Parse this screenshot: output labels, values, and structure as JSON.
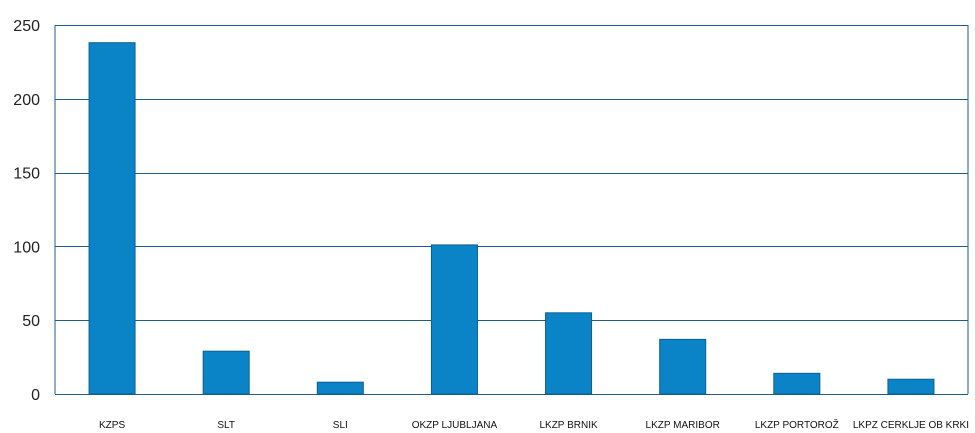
{
  "chart_data": {
    "type": "bar",
    "categories": [
      "KZPS",
      "SLT",
      "SLI",
      "OKZP LJUBLJANA",
      "LKZP BRNIK",
      "LKZP MARIBOR",
      "LKZP PORTOROŽ",
      "LKPZ CERKLJE OB KRKI"
    ],
    "values": [
      238,
      29,
      8,
      101,
      55,
      37,
      14,
      10
    ],
    "ylim": [
      0,
      250
    ],
    "yticks": [
      0,
      50,
      100,
      150,
      200,
      250
    ],
    "grid": true,
    "colors": {
      "bar": "#0a84c6",
      "bar_edge": "#0a5f95",
      "grid": "#1f5a92",
      "frame": "#1f5a92"
    }
  }
}
